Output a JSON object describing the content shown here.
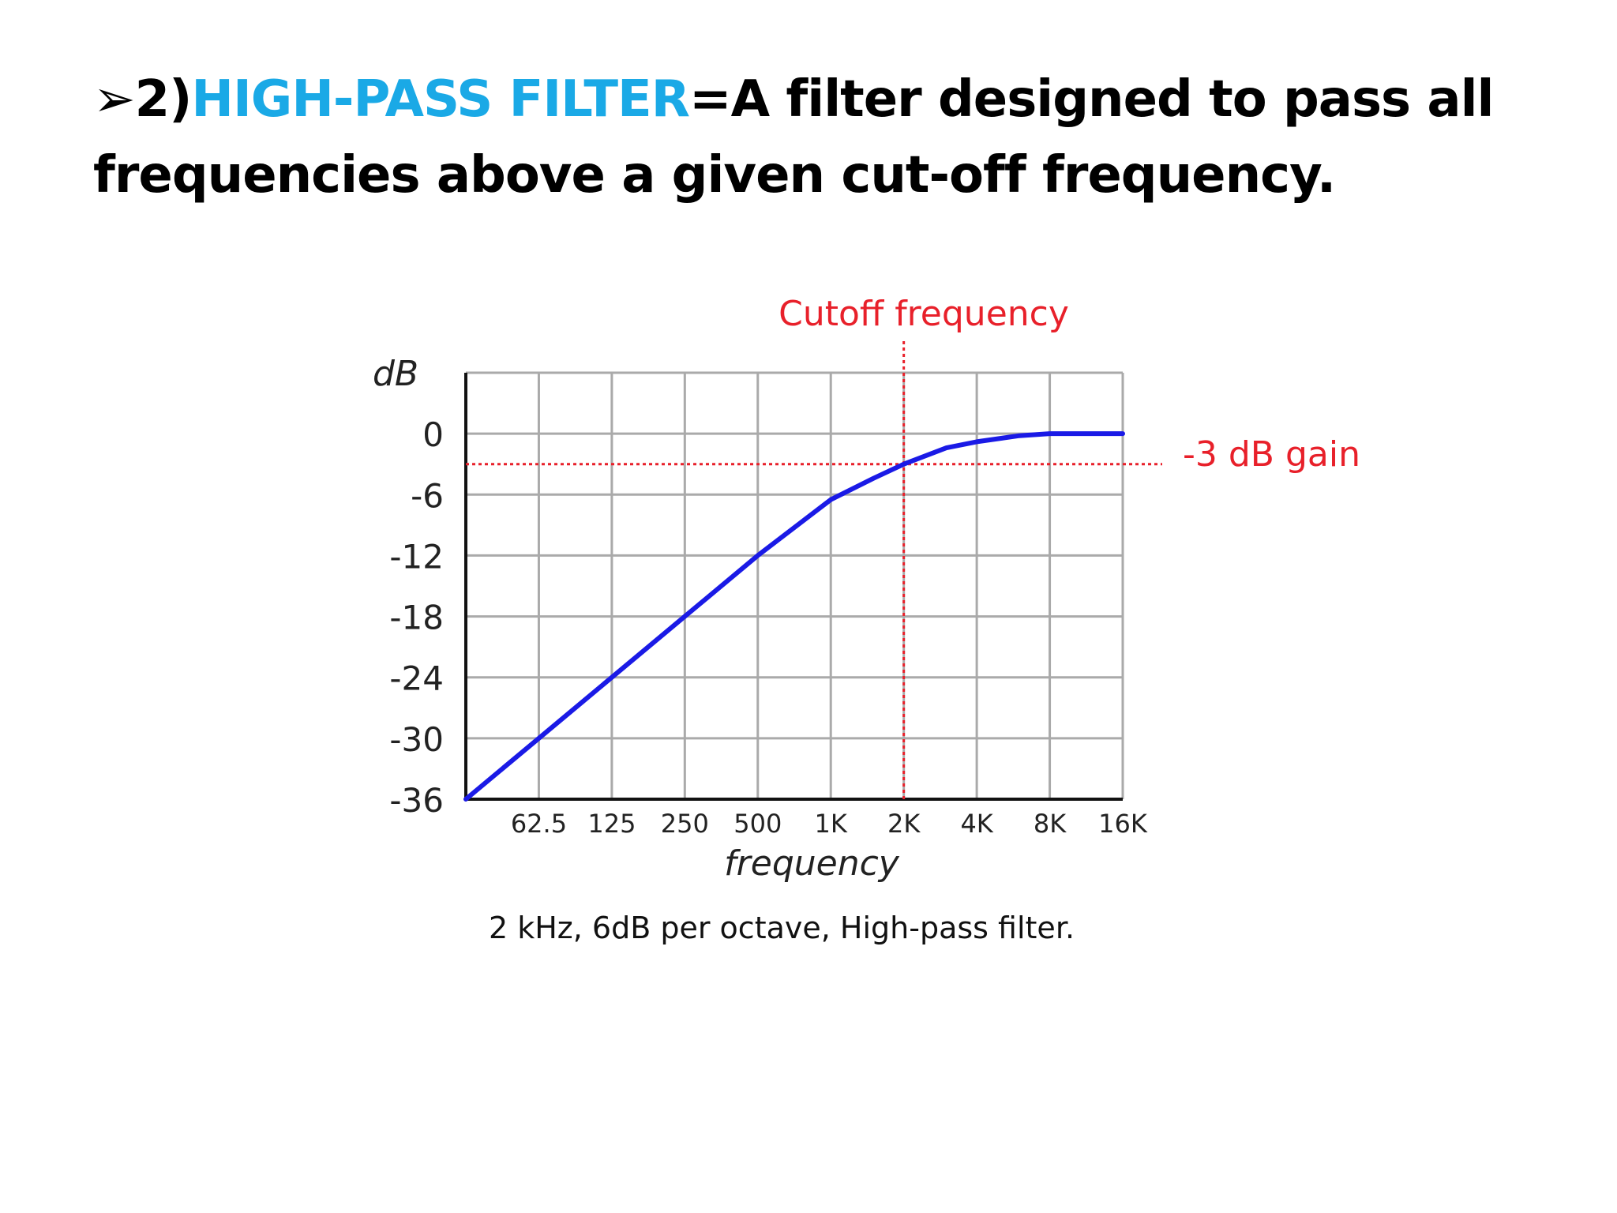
{
  "slide": {
    "bullet": "➢",
    "number": "2)",
    "term": "HIGH-PASS FILTER",
    "definition_line1": "=A filter designed to pass all",
    "definition_line2": "frequencies above a given cut-off frequency.",
    "accent_color": "#1aa9e6"
  },
  "chart_data": {
    "type": "line",
    "ylabel": "dB",
    "xlabel": "frequency",
    "caption": "2 kHz, 6dB per octave, High-pass filter.",
    "x_ticks": [
      "62.5",
      "125",
      "250",
      "500",
      "1K",
      "2K",
      "4K",
      "8K",
      "16K"
    ],
    "y_ticks": [
      0,
      -6,
      -12,
      -18,
      -24,
      -30,
      -36
    ],
    "ylim": [
      -36,
      6
    ],
    "x_scale": "log2 (octaves)",
    "grid": true,
    "cutoff_label": "Cutoff frequency",
    "cutoff_x": "2K",
    "gain_label": "-3 dB gain",
    "gain_y": -3,
    "series": [
      {
        "color": "#1a1ae6",
        "x_hz": [
          31.25,
          62.5,
          125,
          250,
          500,
          1000,
          1500,
          2000,
          3000,
          4000,
          6000,
          8000,
          16000
        ],
        "y_db": [
          -36,
          -30,
          -24,
          -18,
          -12,
          -6.5,
          -4.4,
          -3,
          -1.4,
          -0.8,
          -0.2,
          0,
          0
        ]
      }
    ],
    "grid_color": "#aaaaaa",
    "marker_color": "#e8202a"
  }
}
